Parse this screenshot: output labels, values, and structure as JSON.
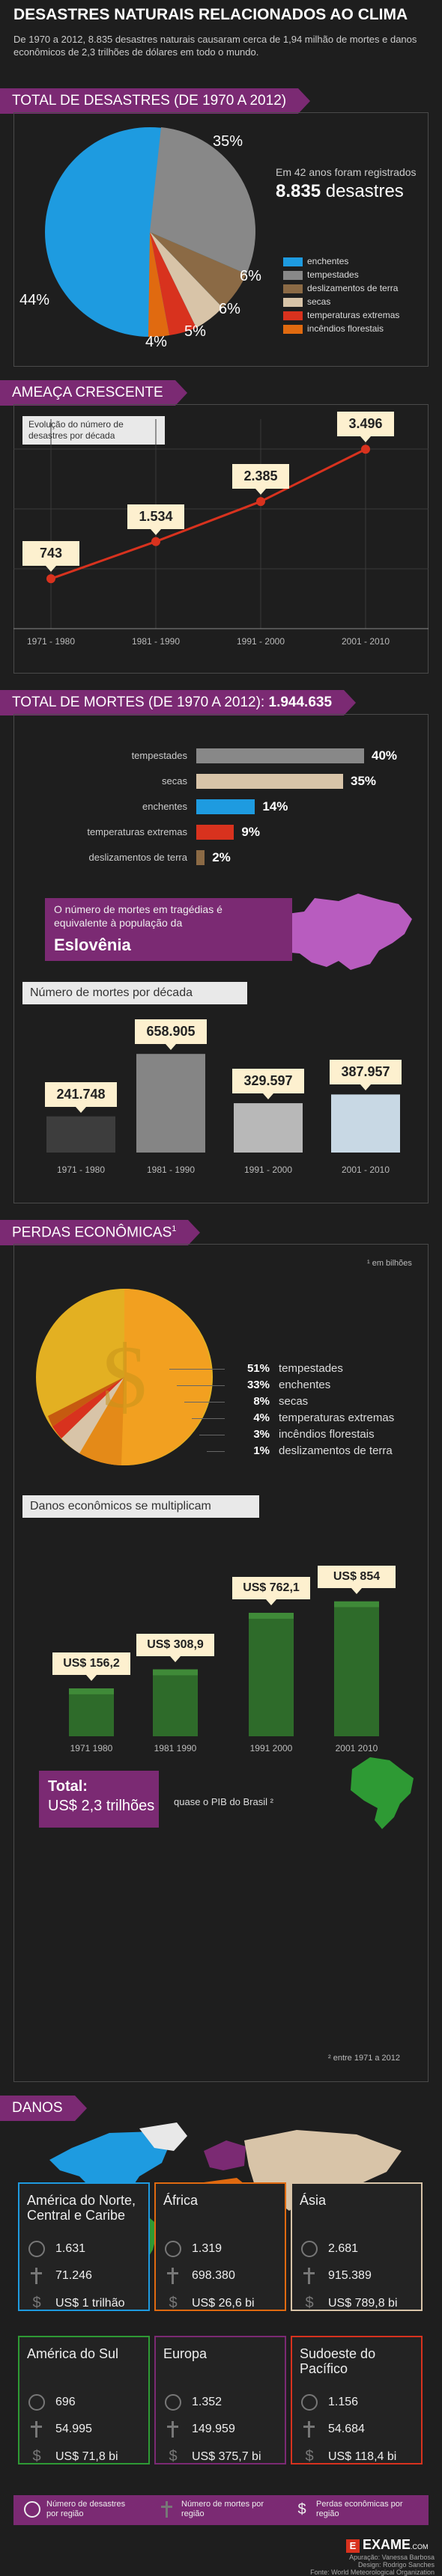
{
  "header": {
    "title": "DESASTRES NATURAIS RELACIONADOS AO CLIMA",
    "intro": "De 1970 a 2012, 8.835 desastres naturais causaram cerca de 1,94 milhão de mortes e danos econômicos de 2,3 trilhões de dólares em todo o mundo."
  },
  "colors": {
    "enchentes": "#1e9be0",
    "tempestades": "#888888",
    "deslizamentos": "#8b6a45",
    "secas": "#d8c4a8",
    "temperaturas": "#d8321e",
    "incendios": "#e06a10",
    "accent": "#7b2a73"
  },
  "total": {
    "heading": "TOTAL DE DESASTRES (DE 1970 A 2012)",
    "note_line1": "Em 42 anos foram registrados",
    "note_value": "8.835",
    "note_unit": "desastres",
    "legend": [
      "enchentes",
      "tempestades",
      "deslizamentos de terra",
      "secas",
      "temperaturas extremas",
      "incêndios florestais"
    ],
    "pie_labels": [
      "44%",
      "35%",
      "6%",
      "6%",
      "5%",
      "4%"
    ]
  },
  "chart_data": [
    {
      "type": "line",
      "title": "Evolução do número de desastres por década",
      "categories": [
        "1971 - 1980",
        "1981 - 1990",
        "1991 - 2000",
        "2001 - 2010"
      ],
      "values": [
        743,
        1534,
        2385,
        3496
      ],
      "labels": [
        "743",
        "1.534",
        "2.385",
        "3.496"
      ]
    },
    {
      "type": "bar",
      "title": "Número de mortes por década",
      "categories": [
        "1971 - 1980",
        "1981 - 1990",
        "1991 - 2000",
        "2001 - 2010"
      ],
      "values": [
        241748,
        658905,
        329597,
        387957
      ],
      "labels": [
        "241.748",
        "658.905",
        "329.597",
        "387.957"
      ]
    },
    {
      "type": "bar",
      "title": "Danos econômicos se multiplicam",
      "categories": [
        "1971 1980",
        "1981 1990",
        "1991 2000",
        "2001 2010"
      ],
      "values": [
        156.2,
        308.9,
        762.1,
        854
      ],
      "labels": [
        "US$ 156,2",
        "US$ 308,9",
        "US$ 762,1",
        "US$ 854"
      ]
    },
    {
      "type": "pie",
      "title": "TOTAL DE DESASTRES (DE 1970 A 2012)",
      "categories": [
        "enchentes",
        "tempestades",
        "deslizamentos de terra",
        "secas",
        "temperaturas extremas",
        "incêndios florestais"
      ],
      "values": [
        44,
        35,
        6,
        6,
        5,
        4
      ]
    }
  ],
  "threat": {
    "heading": "AMEAÇA CRESCENTE",
    "caption": "Evolução do número de desastres por década"
  },
  "deaths": {
    "heading": "TOTAL DE MORTES (DE 1970 A 2012):",
    "total": "1.944.635",
    "rows": [
      {
        "label": "tempestades",
        "pct": "40%",
        "value": 40
      },
      {
        "label": "secas",
        "pct": "35%",
        "value": 35
      },
      {
        "label": "enchentes",
        "pct": "14%",
        "value": 14
      },
      {
        "label": "temperaturas extremas",
        "pct": "9%",
        "value": 9
      },
      {
        "label": "deslizamentos de terra",
        "pct": "2%",
        "value": 2
      }
    ],
    "slovenia_text": "O número de mortes em tragédias é equivalente à população da",
    "slovenia_name": "Eslovênia",
    "decade_title": "Número de mortes por década"
  },
  "losses": {
    "heading": "PERDAS ECONÔMICAS",
    "sup": "1",
    "unit_note": "¹ em bilhões",
    "rows": [
      {
        "pct": "51%",
        "label": "tempestades"
      },
      {
        "pct": "33%",
        "label": "enchentes"
      },
      {
        "pct": "8%",
        "label": "secas"
      },
      {
        "pct": "4%",
        "label": "temperaturas extremas"
      },
      {
        "pct": "3%",
        "label": "incêndios florestais"
      },
      {
        "pct": "1%",
        "label": "deslizamentos de terra"
      }
    ],
    "damage_title": "Danos econômicos se multiplicam",
    "total_label": "Total:",
    "total_value": "US$ 2,3 trilhões",
    "pib_text": "quase o PIB do Brasil ²",
    "footnote": "² entre 1971 a 2012"
  },
  "danos": {
    "heading": "DANOS",
    "regions": [
      {
        "name": "América do Norte, Central e Caribe",
        "n": "1.631",
        "d": "71.246",
        "e": "US$ 1 trilhão",
        "color": "#1e9be0"
      },
      {
        "name": "África",
        "n": "1.319",
        "d": "698.380",
        "e": "US$ 26,6 bi",
        "color": "#e06a10"
      },
      {
        "name": "Ásia",
        "n": "2.681",
        "d": "915.389",
        "e": "US$ 789,8 bi",
        "color": "#d8c4a8"
      },
      {
        "name": "América do Sul",
        "n": "696",
        "d": "54.995",
        "e": "US$ 71,8 bi",
        "color": "#2e9a34"
      },
      {
        "name": "Europa",
        "n": "1.352",
        "d": "149.959",
        "e": "US$ 375,7 bi",
        "color": "#7b2a73"
      },
      {
        "name": "Sudoeste do Pacífico",
        "n": "1.156",
        "d": "54.684",
        "e": "US$ 118,4 bi",
        "color": "#d8321e"
      }
    ],
    "legend": [
      "Número de desastres por região",
      "Número de mortes por região",
      "Perdas econômicas por região"
    ]
  },
  "footer": {
    "brand": "EXAME",
    "brand_suffix": ".COM",
    "credit1": "Apuração: Vanessa Barbosa",
    "credit2": "Design: Rodrigo Sanches",
    "credit3": "Fonte: World Meteorological Organization"
  }
}
